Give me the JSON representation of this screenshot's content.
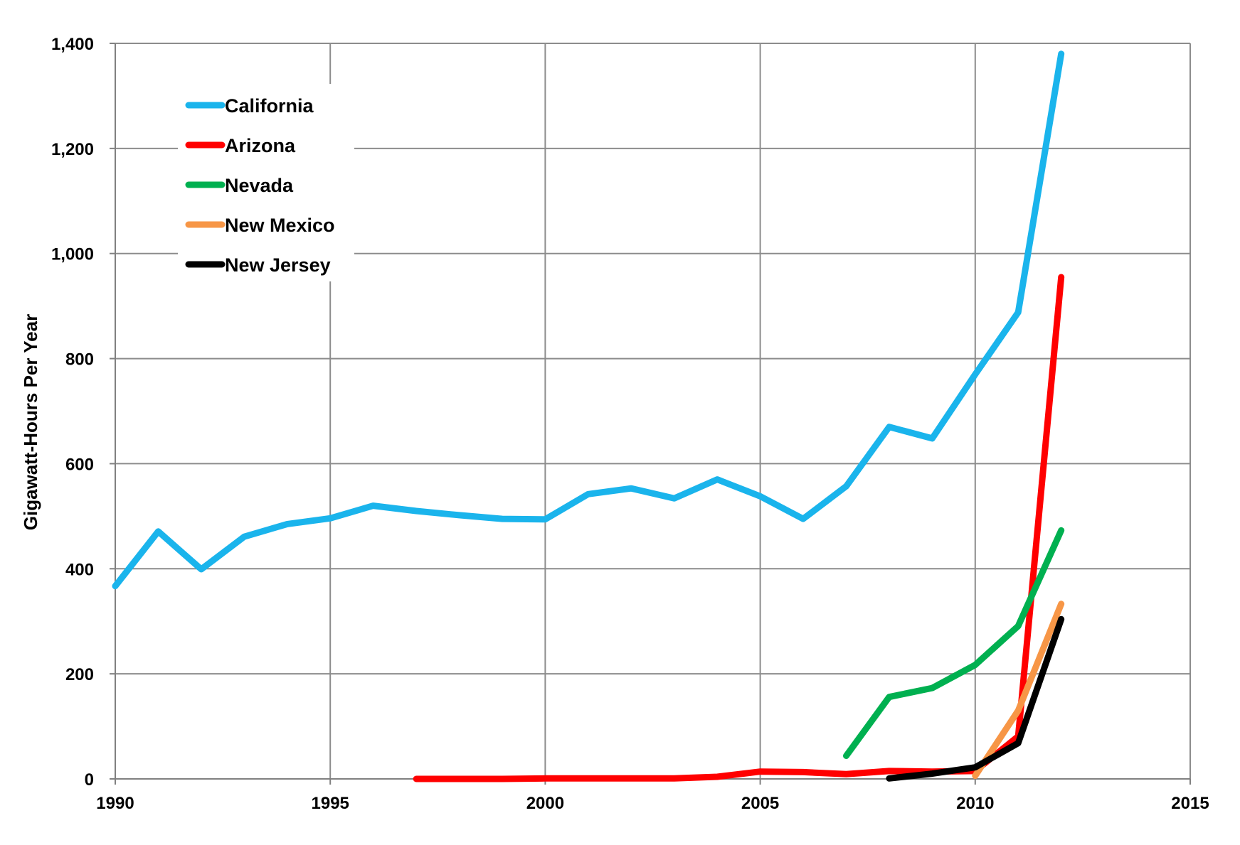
{
  "chart_data": {
    "type": "line",
    "title": "",
    "xlabel": "",
    "ylabel": "Gigawatt-Hours Per Year",
    "xlim": [
      1990,
      2015
    ],
    "ylim": [
      0,
      1400
    ],
    "x_ticks": [
      1990,
      1995,
      2000,
      2005,
      2010,
      2015
    ],
    "x_tick_labels": [
      "1990",
      "1995",
      "2000",
      "2005",
      "2010",
      "2015"
    ],
    "y_ticks": [
      0,
      200,
      400,
      600,
      800,
      1000,
      1200,
      1400
    ],
    "y_tick_labels": [
      "0",
      "200",
      "400",
      "600",
      "800",
      "1,000",
      "1,200",
      "1,400"
    ],
    "grid": true,
    "legend_position": "top-left",
    "series": [
      {
        "name": "California",
        "color": "#1ab4ec",
        "x": [
          1990,
          1991,
          1992,
          1993,
          1994,
          1995,
          1996,
          1997,
          1998,
          1999,
          2000,
          2001,
          2002,
          2003,
          2004,
          2005,
          2006,
          2007,
          2008,
          2009,
          2010,
          2011,
          2012
        ],
        "y": [
          367,
          471,
          399,
          461,
          485,
          496,
          520,
          510,
          502,
          495,
          494,
          542,
          553,
          534,
          570,
          538,
          495,
          557,
          670,
          648,
          770,
          888,
          1380
        ]
      },
      {
        "name": "Arizona",
        "color": "#ff0000",
        "x": [
          1997,
          1998,
          1999,
          2000,
          2001,
          2002,
          2003,
          2004,
          2005,
          2006,
          2007,
          2008,
          2009,
          2010,
          2011,
          2012
        ],
        "y": [
          0,
          0,
          0,
          1,
          1,
          1,
          1,
          4,
          14,
          13,
          9,
          15,
          14,
          15,
          81,
          955
        ]
      },
      {
        "name": "Nevada",
        "color": "#00b050",
        "x": [
          2007,
          2008,
          2009,
          2010,
          2011,
          2012
        ],
        "y": [
          44,
          156,
          173,
          217,
          291,
          473
        ]
      },
      {
        "name": "New Mexico",
        "color": "#f79646",
        "x": [
          2010,
          2011,
          2012
        ],
        "y": [
          6,
          130,
          333
        ]
      },
      {
        "name": "New Jersey",
        "color": "#000000",
        "x": [
          2008,
          2009,
          2010,
          2011,
          2012
        ],
        "y": [
          1,
          10,
          22,
          68,
          304
        ]
      }
    ]
  }
}
